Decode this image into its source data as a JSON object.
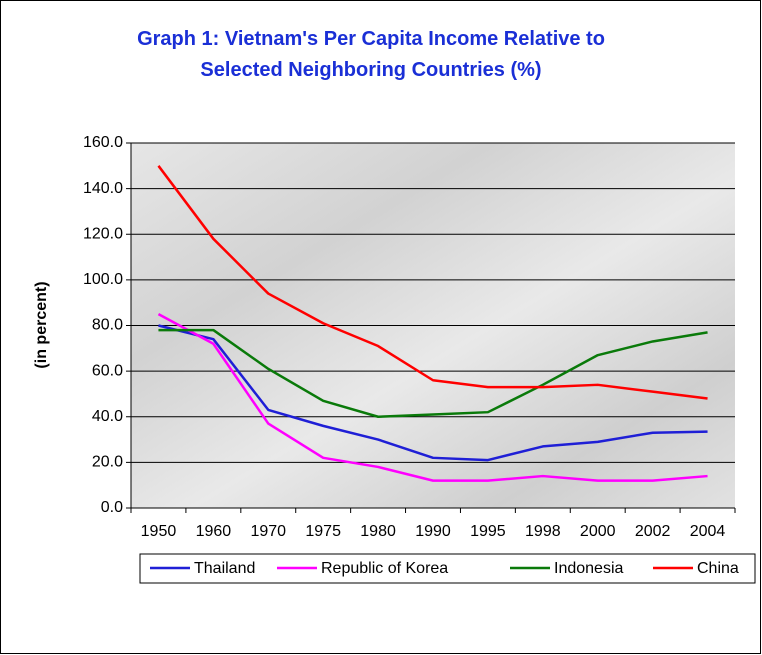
{
  "chart_data": {
    "type": "line",
    "title": "Graph 1: Vietnam's Per Capita Income Relative to Selected Neighboring Countries (%)",
    "y_label": "(in percent)",
    "categories": [
      "1950",
      "1960",
      "1970",
      "1975",
      "1980",
      "1990",
      "1995",
      "1998",
      "2000",
      "2002",
      "2004"
    ],
    "series": [
      {
        "name": "Thailand",
        "color": "#1f1fd6",
        "values": [
          80,
          74,
          43,
          36,
          30,
          22,
          21,
          27,
          29,
          33,
          33.5
        ]
      },
      {
        "name": "Republic of Korea",
        "color": "#ff00ff",
        "values": [
          85,
          72,
          37,
          22,
          18,
          12,
          12,
          14,
          12,
          12,
          14
        ]
      },
      {
        "name": "Indonesia",
        "color": "#0a7a0a",
        "values": [
          78,
          78,
          61,
          47,
          40,
          41,
          42,
          54,
          67,
          73,
          77
        ]
      },
      {
        "name": "China",
        "color": "#ff0000",
        "values": [
          150,
          118,
          94,
          81,
          71,
          56,
          53,
          53,
          54,
          51,
          48
        ]
      }
    ],
    "ylim": [
      0,
      160
    ],
    "yticks": [
      {
        "value": 0,
        "label": "0.0"
      },
      {
        "value": 20,
        "label": "20.0"
      },
      {
        "value": 40,
        "label": "40.0"
      },
      {
        "value": 60,
        "label": "60.0"
      },
      {
        "value": 80,
        "label": "80.0"
      },
      {
        "value": 100,
        "label": "100.0"
      },
      {
        "value": 120,
        "label": "120.0"
      },
      {
        "value": 140,
        "label": "140.0"
      },
      {
        "value": 160,
        "label": "160.0"
      }
    ],
    "grid": true,
    "legend": "bottom"
  }
}
